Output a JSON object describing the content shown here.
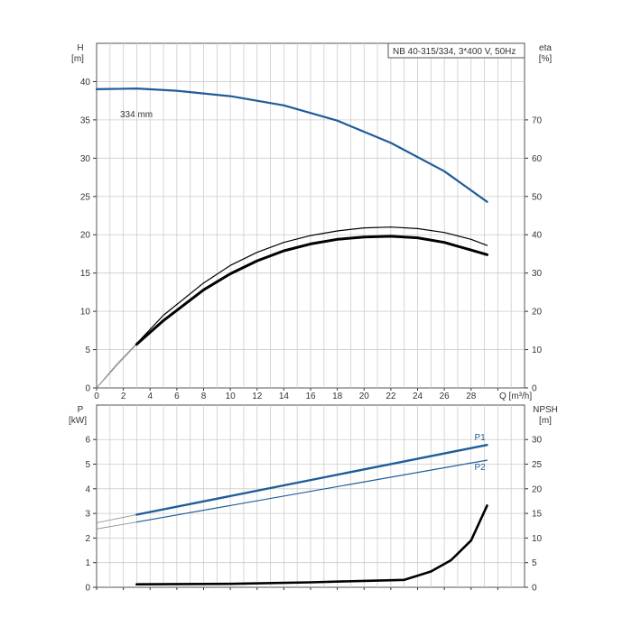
{
  "chart_data": [
    {
      "type": "line",
      "title": "NB 40-315/334, 3*400 V, 50Hz",
      "left_axis": {
        "label": "H",
        "unit": "[m]",
        "range": [
          0,
          45
        ],
        "ticks": [
          0,
          5,
          10,
          15,
          20,
          25,
          30,
          35,
          40
        ]
      },
      "right_axis": {
        "label": "eta",
        "unit": "[%]",
        "range": [
          0,
          90
        ],
        "ticks": [
          0,
          10,
          20,
          30,
          40,
          50,
          60,
          70
        ]
      },
      "x_axis": {
        "label": "Q [m³/h]",
        "range": [
          0,
          32
        ],
        "ticks": [
          0,
          2,
          4,
          6,
          8,
          10,
          12,
          14,
          16,
          18,
          20,
          22,
          24,
          26,
          28
        ]
      },
      "grid": true,
      "annotation": "334 mm",
      "series": [
        {
          "name": "",
          "axis": "left",
          "color": "#1f5c99",
          "values": [
            [
              0,
              39.0
            ],
            [
              3,
              39.1
            ],
            [
              6,
              38.8
            ],
            [
              10,
              38.1
            ],
            [
              14,
              36.9
            ],
            [
              18,
              34.9
            ],
            [
              22,
              32.0
            ],
            [
              26,
              28.3
            ],
            [
              29.2,
              24.3
            ]
          ]
        },
        {
          "name": "",
          "axis": "right",
          "color": "#000000",
          "values": [
            [
              3,
              11.4
            ],
            [
              5,
              17.6
            ],
            [
              8,
              25.6
            ],
            [
              10,
              29.8
            ],
            [
              12,
              33.2
            ],
            [
              14,
              35.8
            ],
            [
              16,
              37.6
            ],
            [
              18,
              38.8
            ],
            [
              20,
              39.4
            ],
            [
              22,
              39.6
            ],
            [
              24,
              39.2
            ],
            [
              26,
              38.0
            ],
            [
              28,
              36.0
            ],
            [
              29.2,
              34.8
            ]
          ]
        },
        {
          "name": "",
          "axis": "right",
          "color": "#000000",
          "values": [
            [
              3,
              11.6
            ],
            [
              5,
              19.0
            ],
            [
              8,
              27.4
            ],
            [
              10,
              32.0
            ],
            [
              12,
              35.4
            ],
            [
              14,
              38.0
            ],
            [
              16,
              39.8
            ],
            [
              18,
              41.0
            ],
            [
              20,
              41.8
            ],
            [
              22,
              42.0
            ],
            [
              24,
              41.6
            ],
            [
              26,
              40.6
            ],
            [
              28,
              38.8
            ],
            [
              29.2,
              37.2
            ]
          ]
        }
      ],
      "extension_series": [
        {
          "axis": "left",
          "values": [
            [
              0,
              39.0
            ],
            [
              3,
              39.1
            ]
          ]
        },
        {
          "axis": "right",
          "values": [
            [
              0,
              0
            ],
            [
              1.5,
              5.8
            ],
            [
              3,
              11.4
            ]
          ]
        },
        {
          "axis": "right",
          "values": [
            [
              0,
              0
            ],
            [
              1.5,
              6.2
            ],
            [
              3,
              11.6
            ]
          ]
        }
      ]
    },
    {
      "type": "line",
      "left_axis": {
        "label": "P",
        "unit": "[kW]",
        "range": [
          0,
          7.4
        ],
        "ticks": [
          0,
          1,
          2,
          3,
          4,
          5,
          6
        ]
      },
      "right_axis": {
        "label": "NPSH",
        "unit": "[m]",
        "range": [
          0,
          37
        ],
        "ticks": [
          0,
          5,
          10,
          15,
          20,
          25,
          30
        ]
      },
      "x_axis": {
        "range": [
          0,
          32
        ],
        "ticks": []
      },
      "grid": true,
      "series": [
        {
          "name": "P1",
          "axis": "left",
          "color": "#1f5c99",
          "values": [
            [
              3,
              2.95
            ],
            [
              29.2,
              5.78
            ]
          ]
        },
        {
          "name": "P2",
          "axis": "left",
          "color": "#1f5c99",
          "values": [
            [
              3,
              2.65
            ],
            [
              29.2,
              5.16
            ]
          ]
        },
        {
          "name": "",
          "axis": "right",
          "color": "#000000",
          "values": [
            [
              3,
              0.6
            ],
            [
              10,
              0.7
            ],
            [
              16,
              1.0
            ],
            [
              20,
              1.3
            ],
            [
              23,
              1.5
            ],
            [
              25,
              3.2
            ],
            [
              26.5,
              5.5
            ],
            [
              28,
              9.5
            ],
            [
              29.2,
              16.6
            ]
          ]
        }
      ],
      "extension_series": [
        {
          "axis": "left",
          "values": [
            [
              0,
              2.62
            ],
            [
              3,
              2.95
            ]
          ]
        },
        {
          "axis": "left",
          "values": [
            [
              0,
              2.37
            ],
            [
              3,
              2.65
            ]
          ]
        }
      ]
    }
  ]
}
